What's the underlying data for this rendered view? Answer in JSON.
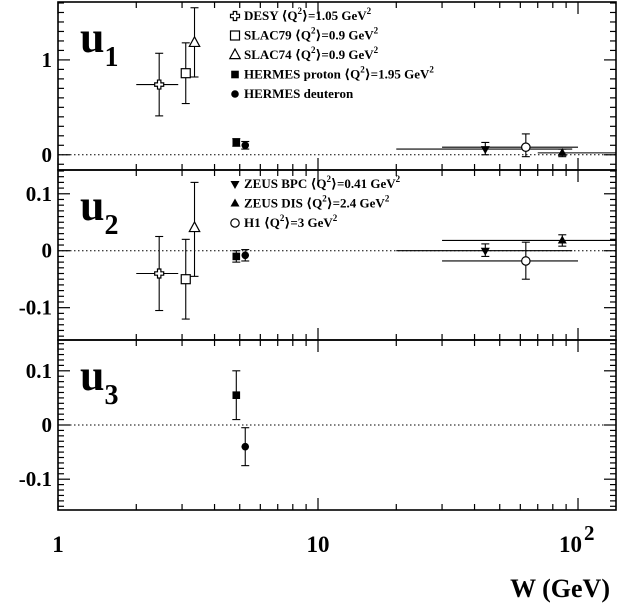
{
  "chart_data": {
    "type": "scatter",
    "x_scale": "log",
    "xlim": [
      1,
      140
    ],
    "xlabel": "W (GeV)",
    "xticks": [
      {
        "value": 1,
        "label": "1"
      },
      {
        "value": 10,
        "label": "10"
      },
      {
        "value": 100,
        "label": "10",
        "sup": "2"
      }
    ],
    "panels": [
      {
        "label": "u",
        "sub": "1",
        "ylim": [
          -0.15,
          1.6
        ],
        "yticks": [
          {
            "value": 0,
            "label": "0"
          },
          {
            "value": 1,
            "label": "1"
          }
        ],
        "series": [
          {
            "name": "DESY ⟨Q²⟩=1.05 GeV²",
            "leg_main": "DESY ⟨Q",
            "leg_rest": "⟩=1.05 GeV",
            "marker": "open-cross",
            "points": [
              {
                "x": 2.45,
                "y": 0.74,
                "ylo": 0.41,
                "yhi": 1.07,
                "xlo": 2.0,
                "xhi": 2.9
              }
            ]
          },
          {
            "name": "SLAC79 ⟨Q²⟩=0.9 GeV²",
            "leg_main": "SLAC79 ⟨Q",
            "leg_rest": "⟩=0.9 GeV",
            "marker": "open-square",
            "points": [
              {
                "x": 3.1,
                "y": 0.86,
                "ylo": 0.54,
                "yhi": 1.18
              }
            ]
          },
          {
            "name": "SLAC74 ⟨Q²⟩=0.9 GeV²",
            "leg_main": "SLAC74 ⟨Q",
            "leg_rest": "⟩=0.9 GeV",
            "marker": "open-triangle",
            "points": [
              {
                "x": 3.35,
                "y": 1.18,
                "ylo": 0.82,
                "yhi": 1.55
              }
            ]
          },
          {
            "name": "HERMES proton ⟨Q²⟩=1.95 GeV²",
            "leg_main": "HERMES proton  ⟨Q",
            "leg_rest": "⟩=1.95 GeV",
            "marker": "filled-square",
            "points": [
              {
                "x": 4.85,
                "y": 0.13,
                "ylo": 0.09,
                "yhi": 0.17
              }
            ]
          },
          {
            "name": "HERMES deuteron",
            "leg_main": "HERMES deuteron",
            "leg_rest": "",
            "marker": "filled-circle",
            "points": [
              {
                "x": 5.25,
                "y": 0.1,
                "ylo": 0.06,
                "yhi": 0.14
              }
            ]
          },
          {
            "name": "ZEUS BPC",
            "marker": "filled-triangle-down",
            "legend": false,
            "points": [
              {
                "x": 44,
                "y": 0.06,
                "ylo": 0.0,
                "yhi": 0.13,
                "xlo": 20,
                "xhi": 95
              }
            ]
          },
          {
            "name": "H1",
            "marker": "open-circle",
            "legend": false,
            "points": [
              {
                "x": 63,
                "y": 0.08,
                "ylo": -0.02,
                "yhi": 0.22,
                "xlo": 30,
                "xhi": 100
              }
            ]
          },
          {
            "name": "ZEUS DIS",
            "marker": "filled-triangle",
            "legend": false,
            "points": [
              {
                "x": 87,
                "y": 0.02,
                "ylo": -0.02,
                "yhi": 0.06,
                "xlo": 70,
                "xhi": 140
              }
            ]
          }
        ]
      },
      {
        "label": "u",
        "sub": "2",
        "ylim": [
          -0.155,
          0.14
        ],
        "yticks": [
          {
            "value": 0.1,
            "label": "0.1"
          },
          {
            "value": 0,
            "label": "0"
          },
          {
            "value": -0.1,
            "label": "-0.1"
          }
        ],
        "series": [
          {
            "name": "DESY",
            "marker": "open-cross",
            "legend": false,
            "points": [
              {
                "x": 2.45,
                "y": -0.04,
                "ylo": -0.105,
                "yhi": 0.025,
                "xlo": 2.0,
                "xhi": 2.9
              }
            ]
          },
          {
            "name": "SLAC79",
            "marker": "open-square",
            "legend": false,
            "points": [
              {
                "x": 3.1,
                "y": -0.05,
                "ylo": -0.12,
                "yhi": 0.02
              }
            ]
          },
          {
            "name": "SLAC74",
            "marker": "open-triangle",
            "legend": false,
            "points": [
              {
                "x": 3.35,
                "y": 0.04,
                "ylo": -0.045,
                "yhi": 0.12
              }
            ]
          },
          {
            "name": "HERMES proton",
            "marker": "filled-square",
            "legend": false,
            "points": [
              {
                "x": 4.85,
                "y": -0.01,
                "ylo": -0.02,
                "yhi": 0.0
              }
            ]
          },
          {
            "name": "HERMES deuteron",
            "marker": "filled-circle",
            "legend": false,
            "points": [
              {
                "x": 5.25,
                "y": -0.008,
                "ylo": -0.018,
                "yhi": 0.002
              }
            ]
          },
          {
            "name": "ZEUS BPC ⟨Q²⟩=0.41 GeV²",
            "leg_main": "ZEUS BPC ⟨Q",
            "leg_rest": "⟩=0.41 GeV",
            "marker": "filled-triangle-down",
            "points": [
              {
                "x": 44,
                "y": 0.0,
                "ylo": -0.01,
                "yhi": 0.012,
                "xlo": 20,
                "xhi": 95
              }
            ]
          },
          {
            "name": "ZEUS DIS ⟨Q²⟩=2.4 GeV²",
            "leg_main": "ZEUS DIS ⟨Q",
            "leg_rest": "⟩=2.4 GeV",
            "marker": "filled-triangle",
            "points": [
              {
                "x": 87,
                "y": 0.018,
                "ylo": 0.008,
                "yhi": 0.028,
                "xlo": 30,
                "xhi": 140
              }
            ]
          },
          {
            "name": "H1 ⟨Q²⟩=3 GeV²",
            "leg_main": "H1 ⟨Q",
            "leg_rest": "⟩=3 GeV",
            "marker": "open-circle",
            "points": [
              {
                "x": 63,
                "y": -0.018,
                "ylo": -0.05,
                "yhi": 0.015,
                "xlo": 30,
                "xhi": 100
              }
            ]
          }
        ]
      },
      {
        "label": "u",
        "sub": "3",
        "ylim": [
          -0.155,
          0.155
        ],
        "yticks": [
          {
            "value": 0.1,
            "label": "0.1"
          },
          {
            "value": 0,
            "label": "0"
          },
          {
            "value": -0.1,
            "label": "-0.1"
          }
        ],
        "series": [
          {
            "name": "HERMES proton",
            "marker": "filled-square",
            "legend": false,
            "points": [
              {
                "x": 4.85,
                "y": 0.055,
                "ylo": 0.01,
                "yhi": 0.1
              }
            ]
          },
          {
            "name": "HERMES deuteron",
            "marker": "filled-circle",
            "legend": false,
            "points": [
              {
                "x": 5.25,
                "y": -0.04,
                "ylo": -0.075,
                "yhi": -0.005
              }
            ]
          }
        ]
      }
    ]
  }
}
